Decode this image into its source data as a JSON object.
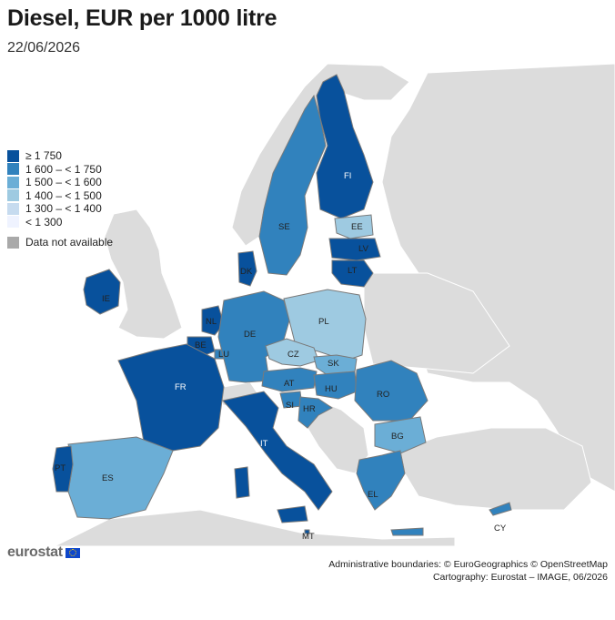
{
  "title": "Diesel, EUR per 1000 litre",
  "subtitle": "22/06/2026",
  "legend": {
    "classes": [
      {
        "label": "≥ 1 750",
        "color": "#08519c"
      },
      {
        "label": "1 600 – < 1 750",
        "color": "#3182bd"
      },
      {
        "label": "1 500 – < 1 600",
        "color": "#6baed6"
      },
      {
        "label": "1 400 – < 1 500",
        "color": "#9ecae1"
      },
      {
        "label": "1 300 – < 1 400",
        "color": "#c6dbef"
      },
      {
        "label": "< 1 300",
        "color": "#eff3ff"
      }
    ],
    "not_available": {
      "label": "Data not available",
      "color": "#a9a9a9"
    }
  },
  "countries": [
    {
      "code": "FI",
      "class": "≥ 1 750"
    },
    {
      "code": "SE",
      "class": "1 600 – < 1 750"
    },
    {
      "code": "EE",
      "class": "1 400 – < 1 500"
    },
    {
      "code": "LV",
      "class": "≥ 1 750"
    },
    {
      "code": "LT",
      "class": "≥ 1 750"
    },
    {
      "code": "DK",
      "class": "≥ 1 750"
    },
    {
      "code": "IE",
      "class": "≥ 1 750"
    },
    {
      "code": "NL",
      "class": "≥ 1 750"
    },
    {
      "code": "BE",
      "class": "≥ 1 750"
    },
    {
      "code": "LU",
      "class": "1 600 – < 1 750"
    },
    {
      "code": "DE",
      "class": "1 600 – < 1 750"
    },
    {
      "code": "PL",
      "class": "1 400 – < 1 500"
    },
    {
      "code": "CZ",
      "class": "1 400 – < 1 500"
    },
    {
      "code": "SK",
      "class": "1 500 – < 1 600"
    },
    {
      "code": "AT",
      "class": "1 600 – < 1 750"
    },
    {
      "code": "HU",
      "class": "1 600 – < 1 750"
    },
    {
      "code": "SI",
      "class": "1 600 – < 1 750"
    },
    {
      "code": "HR",
      "class": "1 600 – < 1 750"
    },
    {
      "code": "RO",
      "class": "1 600 – < 1 750"
    },
    {
      "code": "BG",
      "class": "1 500 – < 1 600"
    },
    {
      "code": "FR",
      "class": "≥ 1 750"
    },
    {
      "code": "IT",
      "class": "≥ 1 750"
    },
    {
      "code": "ES",
      "class": "1 500 – < 1 600"
    },
    {
      "code": "PT",
      "class": "≥ 1 750"
    },
    {
      "code": "EL",
      "class": "1 600 – < 1 750"
    },
    {
      "code": "MT",
      "class": "≥ 1 750"
    },
    {
      "code": "CY",
      "class": "1 600 – < 1 750"
    }
  ],
  "logo": "eurostat",
  "credits": [
    "Administrative boundaries: © EuroGeographics © OpenStreetMap",
    "Cartography: Eurostat – IMAGE, 06/2026"
  ]
}
